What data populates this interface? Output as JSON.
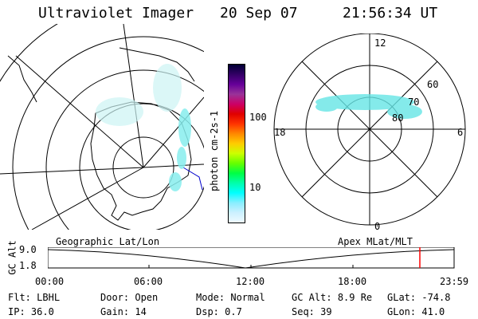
{
  "header": {
    "instrument": "Ultraviolet Imager",
    "date": "20 Sep 07",
    "time": "21:56:34 UT"
  },
  "colorbar": {
    "unit_label": "photon cm-2s-1",
    "ticks": [
      "100",
      "10"
    ],
    "colors": [
      "#000033",
      "#330066",
      "#660099",
      "#993399",
      "#cc0066",
      "#e00000",
      "#ff3300",
      "#ff8800",
      "#ffcc00",
      "#ccff00",
      "#66ff00",
      "#00ff44",
      "#00ffaa",
      "#00ffff",
      "#88eeff",
      "#ccf0ff",
      "#eefaff"
    ]
  },
  "polar_plot": {
    "mlt_labels": {
      "top": "12",
      "right": "6",
      "bottom": "0",
      "left": "18"
    },
    "lat_labels": [
      "60",
      "70",
      "80"
    ]
  },
  "timeline": {
    "left_title": "Geographic Lat/Lon",
    "right_title": "Apex MLat/MLT",
    "axis_label": "GC Alt",
    "y_ticks": [
      "9.0",
      "1.8"
    ],
    "x_ticks": [
      "00:00",
      "06:00",
      "12:00",
      "18:00",
      "23:59"
    ],
    "marker_color": "#ff0000"
  },
  "status": {
    "row1": [
      {
        "label": "Flt:",
        "value": "LBHL"
      },
      {
        "label": "Door:",
        "value": "Open"
      },
      {
        "label": "Mode:",
        "value": "Normal"
      },
      {
        "label": "GC Alt:",
        "value": "8.9 Re"
      },
      {
        "label": "GLat:",
        "value": "-74.8"
      }
    ],
    "row2": [
      {
        "label": "IP:",
        "value": "36.0"
      },
      {
        "label": "Gain:",
        "value": "14"
      },
      {
        "label": "Dsp:",
        "value": "0.7"
      },
      {
        "label": "Seq:",
        "value": "39"
      },
      {
        "label": "GLon:",
        "value": "41.0"
      }
    ]
  }
}
